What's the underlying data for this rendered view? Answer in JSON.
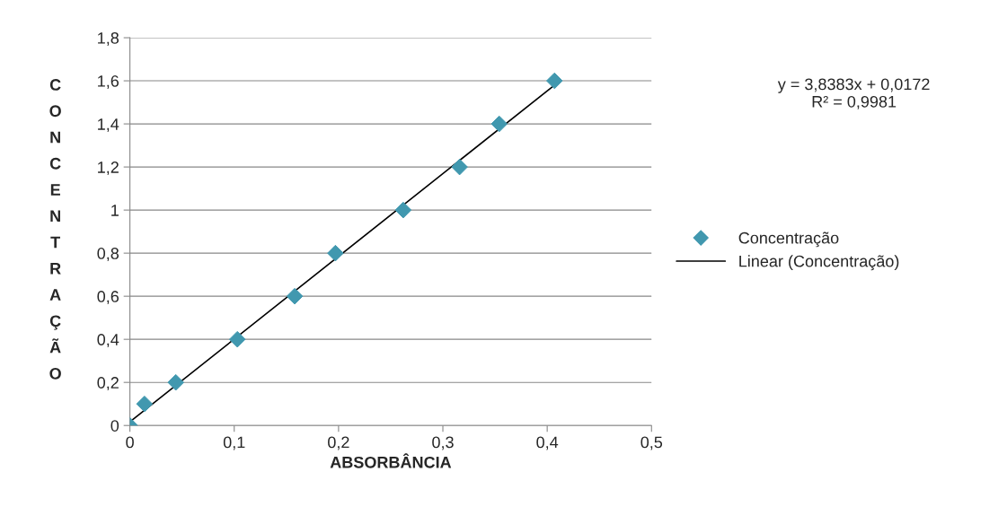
{
  "chart_data": {
    "type": "scatter",
    "xlabel": "ABSORBÂNCIA",
    "ylabel": "CONCENTRAÇÃO",
    "xlim": [
      0,
      0.5
    ],
    "xticks": [
      0,
      {
        "value": 0.1,
        "label": "0,1"
      },
      {
        "value": 0.2,
        "label": "0,2"
      },
      {
        "value": 0.3,
        "label": "0,3"
      },
      {
        "value": 0.4,
        "label": "0,4"
      },
      {
        "value": 0.5,
        "label": "0,5"
      }
    ],
    "ylim": [
      0,
      1.8
    ],
    "yticks": [
      0,
      {
        "value": 0.2,
        "label": "0,2"
      },
      {
        "value": 0.4,
        "label": "0,4"
      },
      {
        "value": 0.6,
        "label": "0,6"
      },
      {
        "value": 0.8,
        "label": "0,8"
      },
      1,
      {
        "value": 1.2,
        "label": "1,2"
      },
      {
        "value": 1.4,
        "label": "1,4"
      },
      {
        "value": 1.6,
        "label": "1,6"
      },
      {
        "value": 1.8,
        "label": "1,8"
      }
    ],
    "grid": "y",
    "legend": "right",
    "annotations": [
      "y = 3,8383x + 0,0172\nR² = 0,9981"
    ],
    "series": [
      {
        "name": "Concentração",
        "marker": "diamond",
        "color": "#4198af",
        "x": [
          0,
          0.014,
          0.044,
          0.103,
          0.158,
          0.197,
          0.262,
          0.316,
          0.354,
          0.407
        ],
        "values": [
          0,
          0.1,
          0.2,
          0.4,
          0.6,
          0.8,
          1,
          1.2,
          1.4,
          1.6
        ]
      },
      {
        "name": "Linear (Concentração)",
        "type": "line",
        "marker": "none",
        "color": "#000000",
        "x": [
          0,
          0.407
        ],
        "values": [
          0.017,
          1.58
        ]
      }
    ]
  }
}
